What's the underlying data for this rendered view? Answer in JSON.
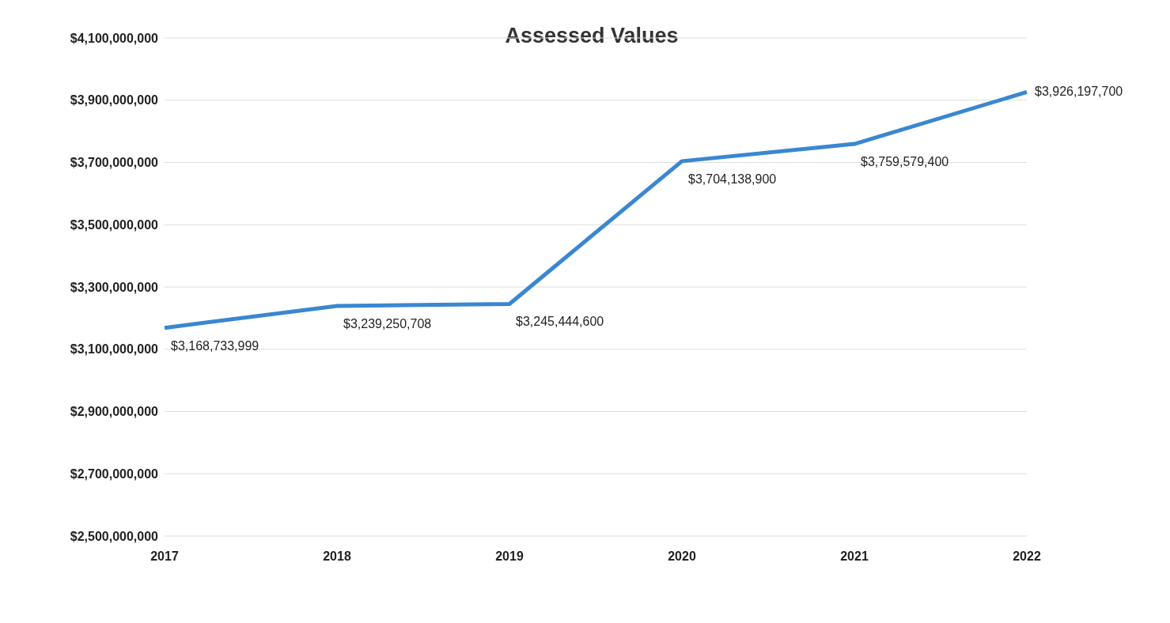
{
  "chart_data": {
    "type": "line",
    "title": "Assessed Values",
    "categories": [
      "2017",
      "2018",
      "2019",
      "2020",
      "2021",
      "2022"
    ],
    "series": [
      {
        "color": "#3a87d0",
        "values": [
          3168733999,
          3239250708,
          3245444600,
          3704138900,
          3759579400,
          3926197700
        ],
        "value_labels": [
          "$3,168,733,999",
          "$3,239,250,708",
          "$3,245,444,600",
          "$3,704,138,900",
          "$3,759,579,400",
          "$3,926,197,700"
        ]
      }
    ],
    "ylim": [
      2500000000,
      4100000000
    ],
    "yticks": [
      {
        "value": 2500000000,
        "label": "$2,500,000,000"
      },
      {
        "value": 2700000000,
        "label": "$2,700,000,000"
      },
      {
        "value": 2900000000,
        "label": "$2,900,000,000"
      },
      {
        "value": 3100000000,
        "label": "$3,100,000,000"
      },
      {
        "value": 3300000000,
        "label": "$3,300,000,000"
      },
      {
        "value": 3500000000,
        "label": "$3,500,000,000"
      },
      {
        "value": 3700000000,
        "label": "$3,700,000,000"
      },
      {
        "value": 3900000000,
        "label": "$3,900,000,000"
      },
      {
        "value": 4100000000,
        "label": "$4,100,000,000"
      }
    ],
    "grid": "y",
    "legend": false,
    "marker": "none",
    "line_style": "solid"
  }
}
